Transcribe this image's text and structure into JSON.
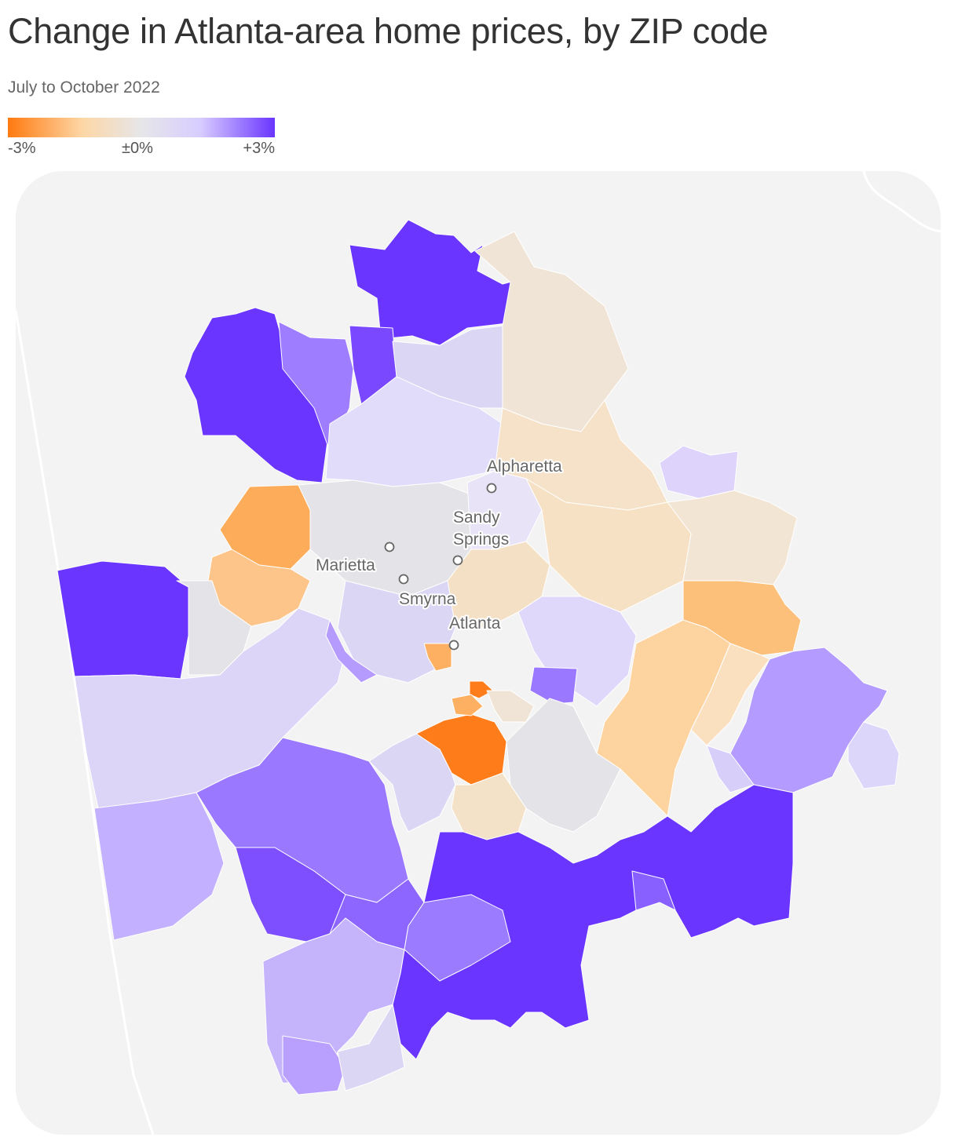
{
  "title": "Change in Atlanta-area home prices, by ZIP code",
  "subtitle": "July to October 2022",
  "legend": {
    "min_label": "-3%",
    "mid_label": "±0%",
    "max_label": "+3%",
    "colors": [
      "#ff7a10",
      "#fdd7a6",
      "#e6e6e9",
      "#d8cdff",
      "#6a35ff"
    ]
  },
  "map": {
    "background_color": "#f3f3f3",
    "border_color": "#ffffff",
    "cities": [
      {
        "name": "Alpharetta",
        "key": "alpharetta"
      },
      {
        "name": "Sandy",
        "key": "sandy"
      },
      {
        "name": "Springs",
        "key": "springs"
      },
      {
        "name": "Marietta",
        "key": "marietta"
      },
      {
        "name": "Smyrna",
        "key": "smyrna"
      },
      {
        "name": "Atlanta",
        "key": "atlanta"
      }
    ]
  }
}
